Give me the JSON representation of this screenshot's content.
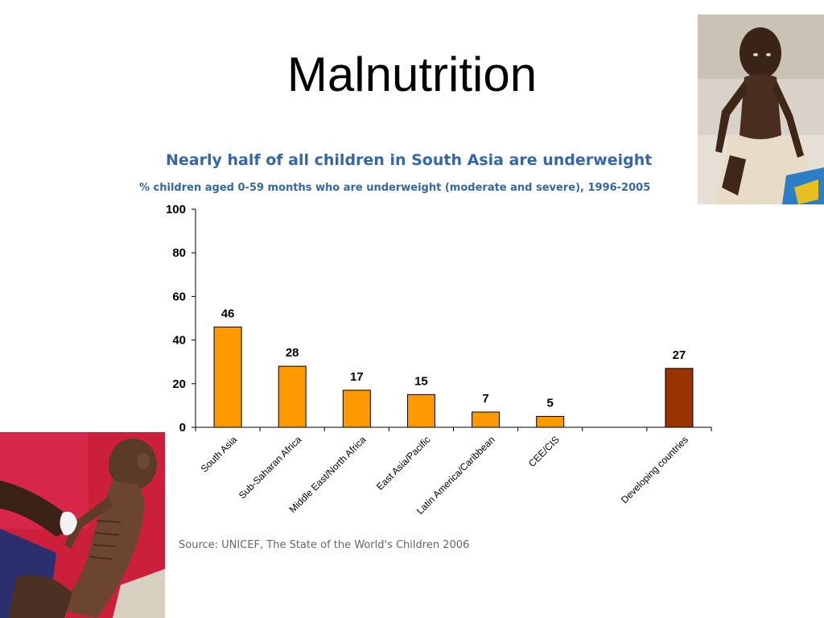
{
  "slide": {
    "title": "Malnutrition"
  },
  "chart_data": {
    "type": "bar",
    "title": "Nearly half of all children in South Asia are underweight",
    "subtitle": "% children aged 0-59 months who are underweight (moderate and severe), 1996-2005",
    "categories": [
      "South Asia",
      "Sub-Saharan Africa",
      "Middle East/North Africa",
      "East Asia/Pacific",
      "Latin America/Caribbean",
      "CEE/CIS",
      "",
      "Developing countries"
    ],
    "values": [
      46,
      28,
      17,
      15,
      7,
      5,
      null,
      27
    ],
    "bar_colors": [
      "#FF9900",
      "#FF9900",
      "#FF9900",
      "#FF9900",
      "#FF9900",
      "#FF9900",
      null,
      "#993300"
    ],
    "ylim": [
      0,
      100
    ],
    "yticks": [
      0,
      20,
      40,
      60,
      80,
      100
    ],
    "xlabel": "",
    "ylabel": "",
    "grid": false,
    "source": "Source: UNICEF, The State of the World's Children 2006"
  },
  "colors": {
    "title_blue": "#3366aa",
    "bar_orange": "#FF9900",
    "bar_brown": "#993300"
  },
  "images": {
    "top_right": "photo of malnourished child sitting",
    "bottom_left": "photo of emaciated child held in arms"
  }
}
